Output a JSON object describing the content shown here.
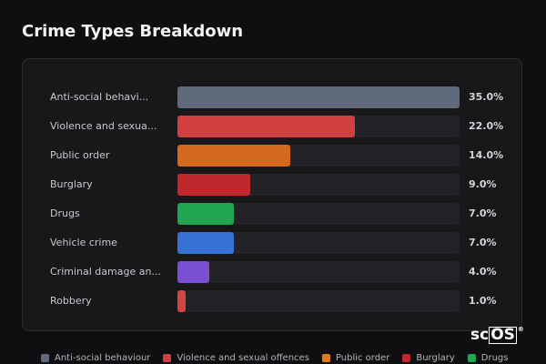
{
  "page_title": "Crime Types Breakdown",
  "logo": {
    "text_a": "sc",
    "text_b": "OS",
    "mark": "®"
  },
  "chart_data": {
    "type": "bar",
    "orientation": "horizontal",
    "xlim": [
      0,
      35
    ],
    "categories": [
      "Anti-social behavi...",
      "Violence and sexua...",
      "Public order",
      "Burglary",
      "Drugs",
      "Vehicle crime",
      "Criminal damage an...",
      "Robbery"
    ],
    "values": [
      35.0,
      22.0,
      14.0,
      9.0,
      7.0,
      7.0,
      4.0,
      1.0
    ],
    "value_labels": [
      "35.0%",
      "22.0%",
      "14.0%",
      "9.0%",
      "7.0%",
      "7.0%",
      "4.0%",
      "1.0%"
    ],
    "colors": [
      "#5f6b7d",
      "#d04040",
      "#d2691e",
      "#c0282d",
      "#22a652",
      "#3671d3",
      "#7a4fd1",
      "#d24545"
    ],
    "legend": {
      "placement": "bottom",
      "entries": [
        {
          "label": "Anti-social behaviour",
          "color": "#5f6b7d"
        },
        {
          "label": "Violence and sexual offences",
          "color": "#d04040"
        },
        {
          "label": "Public order",
          "color": "#e07b22"
        },
        {
          "label": "Burglary",
          "color": "#c0282d"
        },
        {
          "label": "Drugs",
          "color": "#22a652"
        }
      ]
    }
  }
}
